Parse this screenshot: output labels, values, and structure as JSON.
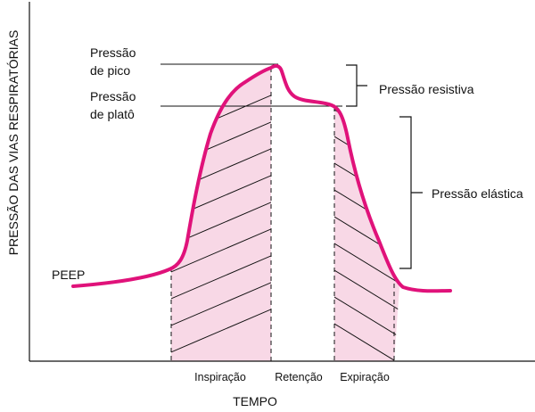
{
  "axes": {
    "y_title": "PRESSÃO DAS VIAS RESPIRATÓRIAS",
    "x_title": "TEMPO",
    "phases": [
      "Inspiração",
      "Retenção",
      "Expiração"
    ]
  },
  "labels": {
    "peak": [
      "Pressão",
      "de pico"
    ],
    "plateau": [
      "Pressão",
      "de platô"
    ],
    "peep": "PEEP",
    "resistive": "Pressão resistiva",
    "elastic": "Pressão elástica"
  },
  "colors": {
    "curve": "#e0127a",
    "fill": "#f8d8e6",
    "line": "#111111"
  }
}
